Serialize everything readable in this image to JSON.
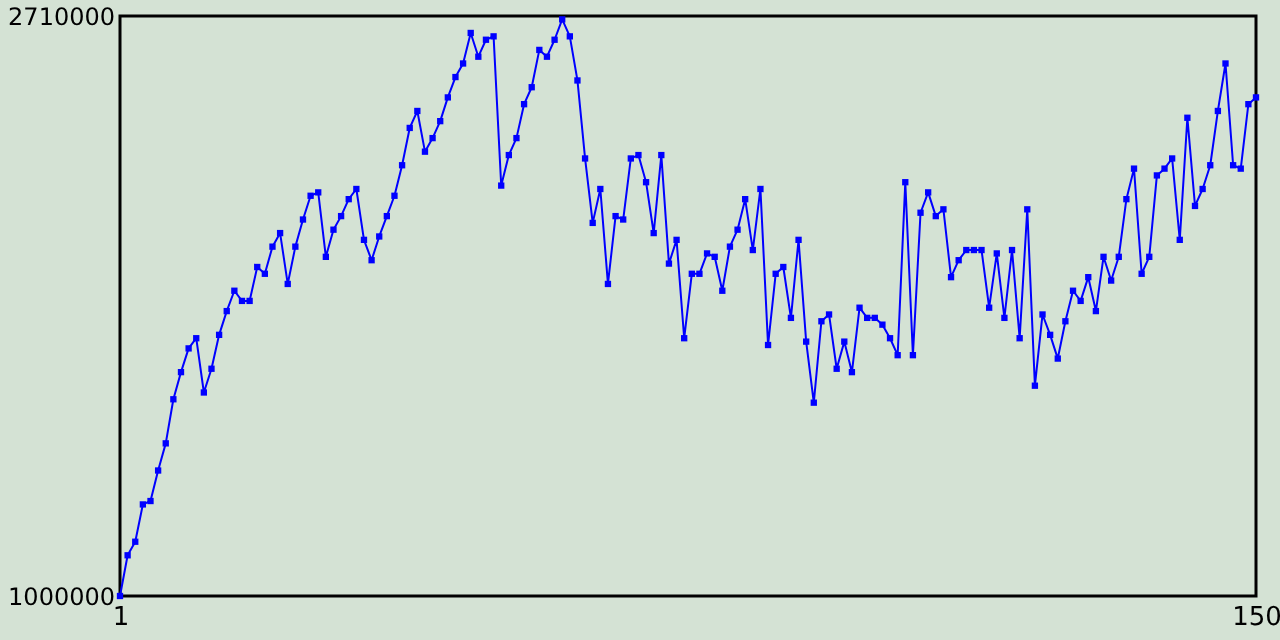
{
  "chart_data": {
    "type": "line",
    "x": [
      1,
      2,
      3,
      4,
      5,
      6,
      7,
      8,
      9,
      10,
      11,
      12,
      13,
      14,
      15,
      16,
      17,
      18,
      19,
      20,
      21,
      22,
      23,
      24,
      25,
      26,
      27,
      28,
      29,
      30,
      31,
      32,
      33,
      34,
      35,
      36,
      37,
      38,
      39,
      40,
      41,
      42,
      43,
      44,
      45,
      46,
      47,
      48,
      49,
      50,
      51,
      52,
      53,
      54,
      55,
      56,
      57,
      58,
      59,
      60,
      61,
      62,
      63,
      64,
      65,
      66,
      67,
      68,
      69,
      70,
      71,
      72,
      73,
      74,
      75,
      76,
      77,
      78,
      79,
      80,
      81,
      82,
      83,
      84,
      85,
      86,
      87,
      88,
      89,
      90,
      91,
      92,
      93,
      94,
      95,
      96,
      97,
      98,
      99,
      100,
      101,
      102,
      103,
      104,
      105,
      106,
      107,
      108,
      109,
      110,
      111,
      112,
      113,
      114,
      115,
      116,
      117,
      118,
      119,
      120,
      121,
      122,
      123,
      124,
      125,
      126,
      127,
      128,
      129,
      130,
      131,
      132,
      133,
      134,
      135,
      136,
      137,
      138,
      139,
      140,
      141,
      142,
      143,
      144,
      145,
      146,
      147,
      148,
      149,
      150
    ],
    "series": [
      {
        "color": "#0000ff",
        "values": [
          1000000,
          1120000,
          1160000,
          1270000,
          1280000,
          1370000,
          1450000,
          1580000,
          1660000,
          1730000,
          1760000,
          1600000,
          1670000,
          1770000,
          1840000,
          1900000,
          1870000,
          1870000,
          1970000,
          1950000,
          2030000,
          2070000,
          1920000,
          2030000,
          2110000,
          2180000,
          2190000,
          2000000,
          2080000,
          2120000,
          2170000,
          2200000,
          2050000,
          1990000,
          2060000,
          2120000,
          2180000,
          2270000,
          2380000,
          2430000,
          2310000,
          2350000,
          2400000,
          2470000,
          2530000,
          2570000,
          2660000,
          2590000,
          2640000,
          2650000,
          2210000,
          2300000,
          2350000,
          2450000,
          2500000,
          2610000,
          2590000,
          2640000,
          2700000,
          2650000,
          2520000,
          2290000,
          2100000,
          2200000,
          1920000,
          2120000,
          2110000,
          2290000,
          2300000,
          2220000,
          2070000,
          2300000,
          1980000,
          2050000,
          1760000,
          1950000,
          1950000,
          2010000,
          2000000,
          1900000,
          2030000,
          2080000,
          2170000,
          2020000,
          2200000,
          1740000,
          1950000,
          1970000,
          1820000,
          2050000,
          1750000,
          1570000,
          1810000,
          1830000,
          1670000,
          1750000,
          1660000,
          1850000,
          1820000,
          1820000,
          1800000,
          1760000,
          1710000,
          2220000,
          1710000,
          2130000,
          2190000,
          2120000,
          2140000,
          1940000,
          1990000,
          2020000,
          2020000,
          2020000,
          1850000,
          2010000,
          1820000,
          2020000,
          1760000,
          2140000,
          1620000,
          1830000,
          1770000,
          1700000,
          1810000,
          1900000,
          1870000,
          1940000,
          1840000,
          2000000,
          1930000,
          2000000,
          2170000,
          2260000,
          1950000,
          2000000,
          2240000,
          2260000,
          2290000,
          2050000,
          2410000,
          2150000,
          2200000,
          2270000,
          2430000,
          2570000,
          2270000,
          2260000,
          2450000,
          2470000
        ]
      }
    ],
    "xlim": [
      1,
      150
    ],
    "xticks": [
      1,
      150
    ],
    "ylim": [
      1000000,
      2710000
    ],
    "yticks": [
      1000000,
      2710000
    ],
    "marker": "square",
    "grid": false
  }
}
